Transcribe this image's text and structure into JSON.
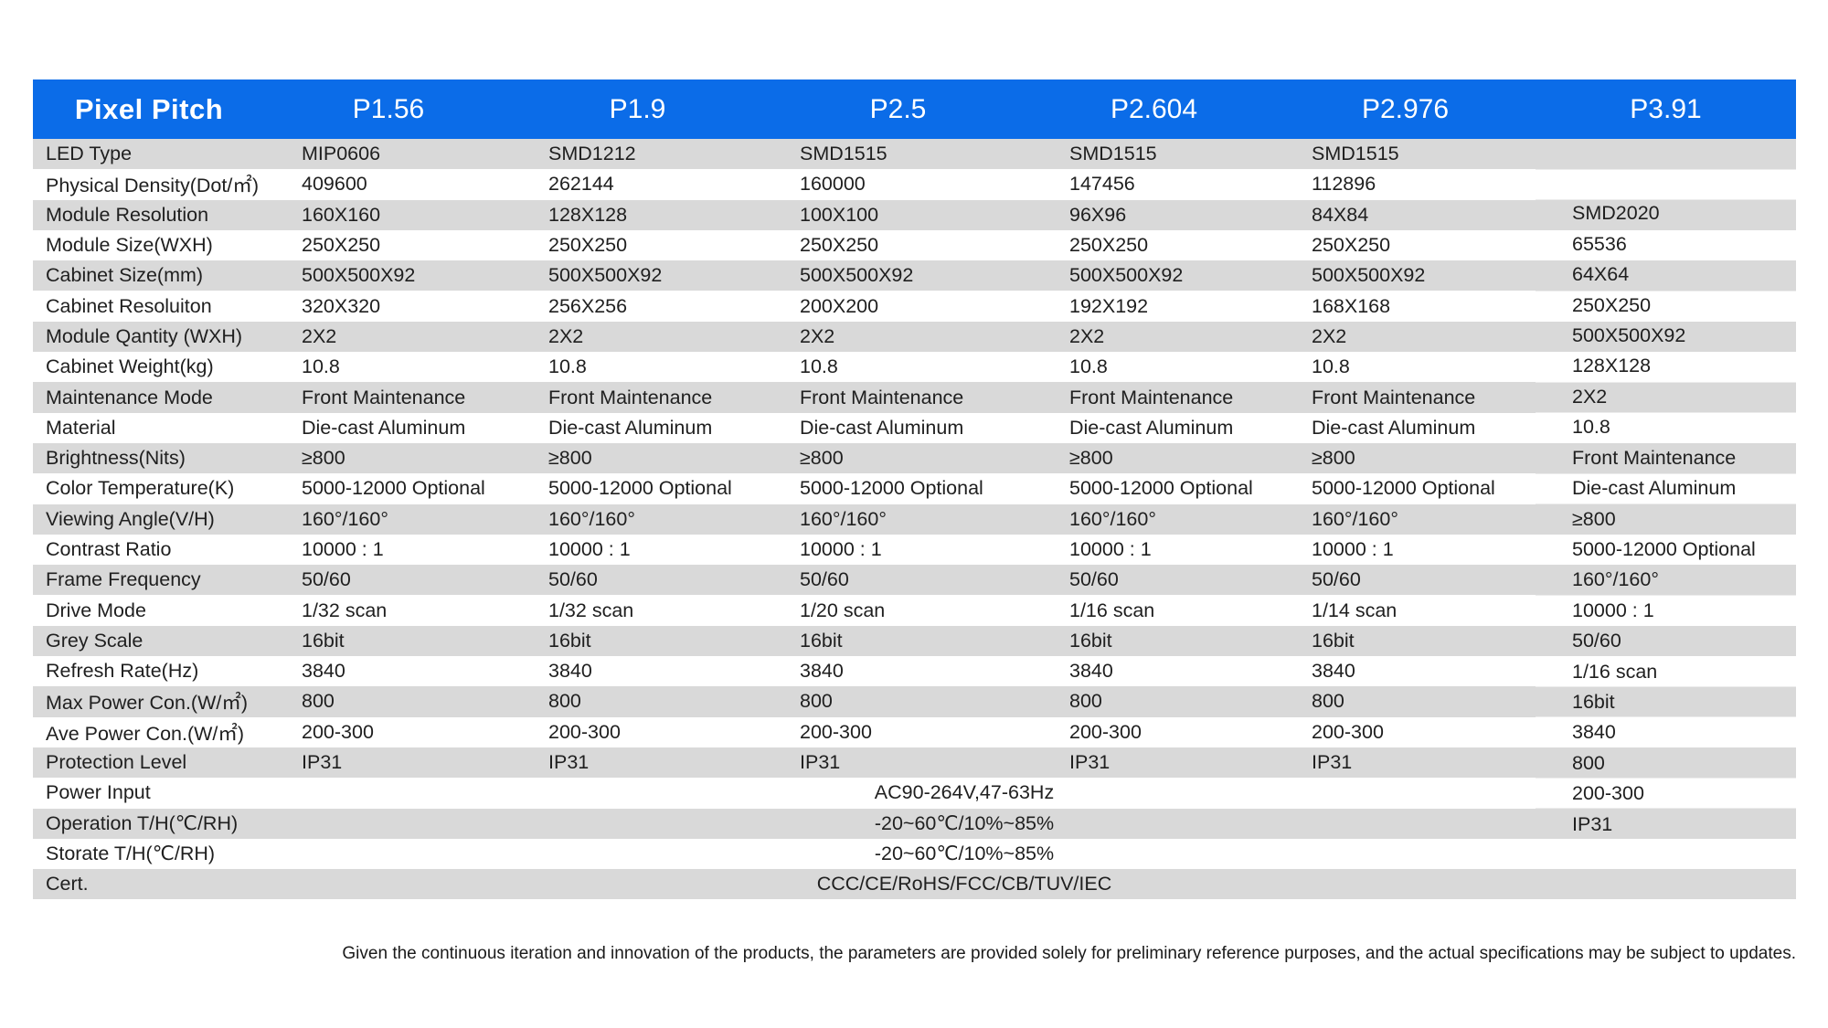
{
  "colors": {
    "header_bg": "#0b6ce8",
    "stripe": "#d9d9d9",
    "header_text": "#ffffff",
    "body_text": "#1f1f1f"
  },
  "header": {
    "label": "Pixel Pitch",
    "columns": [
      "P1.56",
      "P1.9",
      "P2.5",
      "P2.604",
      "P2.976",
      "P3.91"
    ]
  },
  "rows": [
    {
      "label": "LED Type",
      "values": [
        "MIP0606",
        "SMD1212",
        "SMD1515",
        "SMD1515",
        "SMD1515"
      ]
    },
    {
      "label": "Physical Density(Dot/㎡)",
      "values": [
        "409600",
        "262144",
        "160000",
        "147456",
        "112896"
      ]
    },
    {
      "label": "Module Resolution",
      "values": [
        "160X160",
        "128X128",
        "100X100",
        "96X96",
        "84X84"
      ]
    },
    {
      "label": "Module Size(WXH)",
      "values": [
        "250X250",
        "250X250",
        "250X250",
        "250X250",
        "250X250"
      ]
    },
    {
      "label": "Cabinet Size(mm)",
      "values": [
        "500X500X92",
        "500X500X92",
        "500X500X92",
        "500X500X92",
        "500X500X92"
      ]
    },
    {
      "label": "Cabinet Resoluiton",
      "values": [
        "320X320",
        "256X256",
        "200X200",
        "192X192",
        "168X168"
      ]
    },
    {
      "label": "Module Qantity (WXH)",
      "values": [
        "2X2",
        "2X2",
        "2X2",
        "2X2",
        "2X2"
      ]
    },
    {
      "label": "Cabinet Weight(kg)",
      "values": [
        "10.8",
        "10.8",
        "10.8",
        "10.8",
        "10.8"
      ]
    },
    {
      "label": "Maintenance Mode",
      "values": [
        "Front Maintenance",
        "Front Maintenance",
        "Front Maintenance",
        "Front Maintenance",
        "Front Maintenance"
      ]
    },
    {
      "label": "Material",
      "values": [
        "Die-cast Aluminum",
        "Die-cast Aluminum",
        "Die-cast Aluminum",
        "Die-cast Aluminum",
        "Die-cast Aluminum"
      ]
    },
    {
      "label": "Brightness(Nits)",
      "values": [
        "≥800",
        "≥800",
        "≥800",
        "≥800",
        "≥800"
      ]
    },
    {
      "label": "Color Temperature(K)",
      "values": [
        "5000-12000  Optional",
        "5000-12000   Optional",
        "5000-12000  Optional",
        "5000-12000  Optional",
        "5000-12000  Optional"
      ]
    },
    {
      "label": "Viewing Angle(V/H)",
      "values": [
        "160°/160°",
        "160°/160°",
        "160°/160°",
        "160°/160°",
        "160°/160°"
      ]
    },
    {
      "label": "Contrast Ratio",
      "values": [
        "10000 : 1",
        "10000 : 1",
        "10000 : 1",
        "10000 : 1",
        "10000 : 1"
      ]
    },
    {
      "label": "Frame Frequency",
      "values": [
        "50/60",
        "50/60",
        "50/60",
        "50/60",
        "50/60"
      ]
    },
    {
      "label": "Drive Mode",
      "values": [
        "1/32 scan",
        "1/32 scan",
        "1/20 scan",
        "1/16 scan",
        "1/14 scan"
      ]
    },
    {
      "label": "Grey Scale",
      "values": [
        "16bit",
        "16bit",
        "16bit",
        "16bit",
        "16bit"
      ]
    },
    {
      "label": "Refresh Rate(Hz)",
      "values": [
        "3840",
        "3840",
        "3840",
        "3840",
        "3840"
      ]
    },
    {
      "label": "Max Power Con.(W/㎡)",
      "values": [
        "800",
        "800",
        "800",
        "800",
        "800"
      ]
    },
    {
      "label": "Ave Power Con.(W/㎡)",
      "values": [
        "200-300",
        "200-300",
        "200-300",
        "200-300",
        "200-300"
      ]
    },
    {
      "label": "Protection Level",
      "values": [
        "IP31",
        "IP31",
        "IP31",
        "IP31",
        "IP31"
      ]
    }
  ],
  "p391_values": [
    "SMD2020",
    "65536",
    "64X64",
    "250X250",
    "500X500X92",
    "128X128",
    "2X2",
    "10.8",
    "Front Maintenance",
    "Die-cast Aluminum",
    "≥800",
    "5000-12000  Optional",
    "160°/160°",
    "10000 : 1",
    "50/60",
    "1/16 scan",
    "16bit",
    "3840",
    "800",
    "200-300",
    "IP31"
  ],
  "merged_rows": [
    {
      "label": "Power Input",
      "value": "AC90-264V,47-63Hz"
    },
    {
      "label": "Operation T/H(℃/RH)",
      "value": "-20~60℃/10%~85%"
    },
    {
      "label": "Storate T/H(℃/RH)",
      "value": "-20~60℃/10%~85%"
    },
    {
      "label": "Cert.",
      "value": "CCC/CE/RoHS/FCC/CB/TUV/IEC"
    }
  ],
  "footnote": "Given the continuous iteration and innovation of the products, the parameters are provided solely for preliminary reference purposes, and the actual specifications may be subject to updates."
}
